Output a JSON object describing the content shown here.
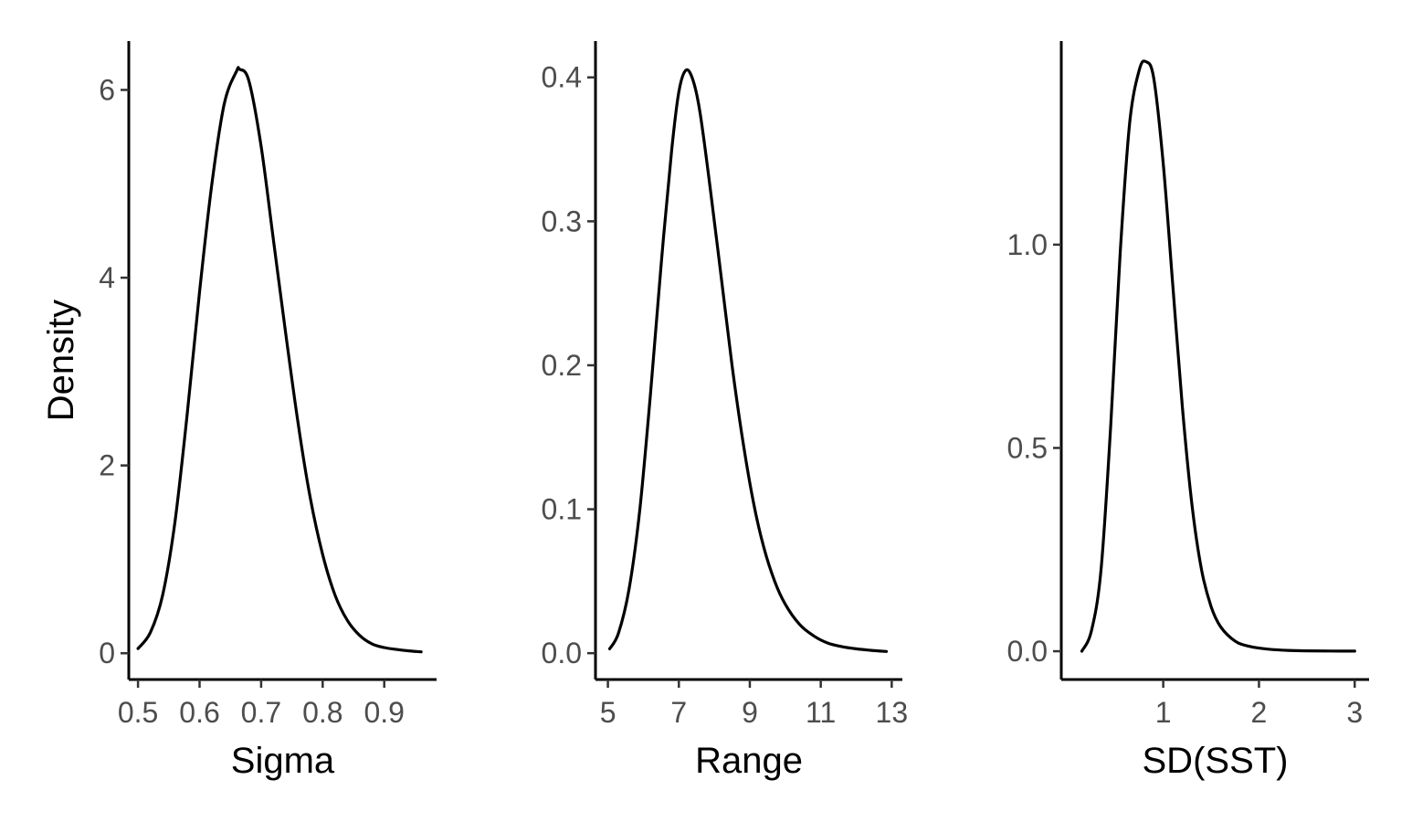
{
  "chart_data": [
    {
      "type": "line",
      "xlabel": "Sigma",
      "ylabel": "Density",
      "xlim": [
        0.485,
        0.985
      ],
      "ylim": [
        -0.28,
        6.52
      ],
      "x_ticks": [
        0.5,
        0.6,
        0.7,
        0.8,
        0.9
      ],
      "x_tick_labels": [
        "0.5",
        "0.6",
        "0.7",
        "0.8",
        "0.9"
      ],
      "y_ticks": [
        0,
        2,
        4,
        6
      ],
      "y_tick_labels": [
        "0",
        "2",
        "4",
        "6"
      ],
      "grid": false,
      "legend": "none",
      "series": [
        {
          "x": [
            0.5,
            0.52,
            0.54,
            0.56,
            0.58,
            0.6,
            0.62,
            0.64,
            0.66,
            0.665,
            0.68,
            0.7,
            0.72,
            0.74,
            0.76,
            0.78,
            0.8,
            0.82,
            0.84,
            0.86,
            0.88,
            0.9,
            0.92,
            0.94,
            0.96
          ],
          "y": [
            0.05,
            0.22,
            0.62,
            1.4,
            2.55,
            3.85,
            5.0,
            5.85,
            6.2,
            6.22,
            6.1,
            5.4,
            4.4,
            3.4,
            2.45,
            1.65,
            1.05,
            0.62,
            0.35,
            0.19,
            0.1,
            0.06,
            0.04,
            0.025,
            0.015
          ],
          "color": "#000000"
        }
      ]
    },
    {
      "type": "line",
      "xlabel": "Range",
      "ylabel": "",
      "xlim": [
        4.65,
        13.3
      ],
      "ylim": [
        -0.0183,
        0.4252
      ],
      "x_ticks": [
        5,
        7,
        9,
        11,
        13
      ],
      "x_tick_labels": [
        "5",
        "7",
        "9",
        "11",
        "13"
      ],
      "y_ticks": [
        0.0,
        0.1,
        0.2,
        0.3,
        0.4
      ],
      "y_tick_labels": [
        "0.0",
        "0.1",
        "0.2",
        "0.3",
        "0.4"
      ],
      "grid": false,
      "legend": "none",
      "series": [
        {
          "x": [
            5.05,
            5.3,
            5.6,
            5.9,
            6.2,
            6.5,
            6.8,
            7.0,
            7.2,
            7.4,
            7.6,
            7.9,
            8.2,
            8.5,
            8.8,
            9.1,
            9.4,
            9.7,
            10.0,
            10.4,
            10.8,
            11.2,
            11.6,
            12.0,
            12.4,
            12.85
          ],
          "y": [
            0.003,
            0.014,
            0.045,
            0.1,
            0.18,
            0.27,
            0.35,
            0.39,
            0.405,
            0.398,
            0.375,
            0.32,
            0.26,
            0.2,
            0.148,
            0.105,
            0.073,
            0.05,
            0.034,
            0.02,
            0.012,
            0.007,
            0.0045,
            0.003,
            0.002,
            0.0012
          ],
          "color": "#000000"
        }
      ]
    },
    {
      "type": "line",
      "xlabel": "SD(SST)",
      "ylabel": "",
      "xlim": [
        -0.065,
        3.15
      ],
      "ylim": [
        -0.0696,
        1.5007
      ],
      "x_ticks": [
        1,
        2,
        3
      ],
      "x_tick_labels": [
        "1",
        "2",
        "3"
      ],
      "y_ticks": [
        0.0,
        0.5,
        1.0
      ],
      "y_tick_labels": [
        "0.0",
        "0.5",
        "1.0"
      ],
      "grid": false,
      "legend": "none",
      "series": [
        {
          "x": [
            0.15,
            0.25,
            0.35,
            0.45,
            0.55,
            0.65,
            0.75,
            0.82,
            0.9,
            1.0,
            1.1,
            1.2,
            1.3,
            1.4,
            1.5,
            1.6,
            1.75,
            1.9,
            2.1,
            2.3,
            2.5,
            2.75,
            3.0
          ],
          "y": [
            0.0,
            0.05,
            0.2,
            0.55,
            0.98,
            1.3,
            1.43,
            1.45,
            1.41,
            1.2,
            0.9,
            0.6,
            0.36,
            0.2,
            0.11,
            0.06,
            0.025,
            0.012,
            0.005,
            0.002,
            0.001,
            0.0005,
            0.0002
          ],
          "color": "#000000"
        }
      ]
    }
  ]
}
